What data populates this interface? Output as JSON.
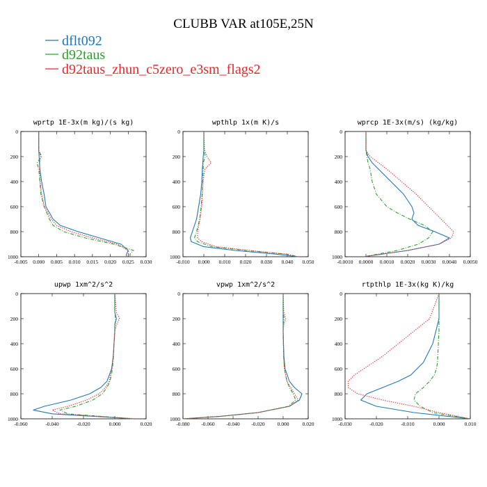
{
  "figure": {
    "title": "CLUBB VAR at105E,25N",
    "legend": [
      {
        "label": "dflt092",
        "color": "#1f77b4"
      },
      {
        "label": "d92taus",
        "color": "#2ca02c"
      },
      {
        "label": "d92taus_zhun_c5zero_e3sm_flags2",
        "color": "#e8262b"
      }
    ]
  },
  "chart_data": [
    {
      "type": "line",
      "title": "wprtp  1E-3x(m kg)/(s kg)",
      "xlim": [
        -0.005,
        0.03
      ],
      "ylim": [
        1000,
        0
      ],
      "y_inverted": true,
      "xticks": [
        "-0.005",
        "0.000",
        "0.005",
        "0.010",
        "0.015",
        "0.020",
        "0.025",
        "0.030"
      ],
      "yticks": [
        "0",
        "200",
        "400",
        "600",
        "800",
        "1000"
      ],
      "y": [
        0,
        150,
        200,
        250,
        300,
        400,
        500,
        600,
        700,
        750,
        800,
        850,
        900,
        950,
        980,
        1000
      ],
      "series": [
        {
          "name": "dflt092",
          "color": "#1f77b4",
          "dash": "solid",
          "x": [
            0,
            0,
            0.0001,
            0.0002,
            0.0003,
            0.0008,
            0.0015,
            0.002,
            0.004,
            0.006,
            0.011,
            0.017,
            0.023,
            0.025,
            0.0245,
            0.0245
          ]
        },
        {
          "name": "d92taus",
          "color": "#2ca02c",
          "dash": "dashdot",
          "x": [
            0,
            0,
            0.0008,
            -0.0005,
            0,
            0.0003,
            0.0006,
            0.0015,
            0.003,
            0.004,
            0.007,
            0.013,
            0.021,
            0.0265,
            0.0255,
            0.0255
          ]
        },
        {
          "name": "d92taus_zhun_c5zero_e3sm_flags2",
          "color": "#e8262b",
          "dash": "dotted",
          "x": [
            0,
            0,
            0.0005,
            0.0003,
            0.0002,
            0.0004,
            0.0008,
            0.0016,
            0.0035,
            0.005,
            0.009,
            0.015,
            0.022,
            0.025,
            0.025,
            0.025
          ]
        }
      ]
    },
    {
      "type": "line",
      "title": "wpthlp  1x(m K)/s",
      "xlim": [
        -0.01,
        0.05
      ],
      "ylim": [
        1000,
        0
      ],
      "y_inverted": true,
      "xticks": [
        "-0.010",
        "0.000",
        "0.010",
        "0.020",
        "0.030",
        "0.040",
        "0.050"
      ],
      "yticks": [
        "0",
        "200",
        "400",
        "600",
        "800",
        "1000"
      ],
      "y": [
        0,
        150,
        200,
        250,
        300,
        400,
        500,
        600,
        700,
        800,
        850,
        880,
        920,
        950,
        980,
        1000
      ],
      "series": [
        {
          "name": "dflt092",
          "color": "#1f77b4",
          "dash": "solid",
          "x": [
            0,
            0,
            -0.0003,
            -0.0005,
            -0.0007,
            -0.001,
            -0.0015,
            -0.0025,
            -0.0035,
            -0.0055,
            -0.0065,
            -0.006,
            0,
            0.015,
            0.035,
            0.045
          ]
        },
        {
          "name": "d92taus",
          "color": "#2ca02c",
          "dash": "dashdot",
          "x": [
            0,
            0,
            0.0007,
            -0.0003,
            -0.0003,
            -0.0005,
            -0.0008,
            -0.0013,
            -0.002,
            -0.0035,
            -0.0045,
            -0.003,
            0.004,
            0.02,
            0.04,
            0.045
          ]
        },
        {
          "name": "d92taus_zhun_c5zero_e3sm_flags2",
          "color": "#e8262b",
          "dash": "dotted",
          "x": [
            0,
            0.0003,
            0.0015,
            0.0035,
            0.0005,
            -0.0004,
            -0.0007,
            -0.001,
            -0.0018,
            -0.003,
            -0.003,
            -0.001,
            0.006,
            0.022,
            0.04,
            0.045
          ]
        }
      ]
    },
    {
      "type": "line",
      "title": "wprcp  1E-3x(m/s) (kg/kg)",
      "xlim": [
        -0.001,
        0.005
      ],
      "ylim": [
        1000,
        0
      ],
      "y_inverted": true,
      "xticks": [
        "-0.0010",
        "0.0000",
        "0.0010",
        "0.0020",
        "0.0030",
        "0.0040",
        "0.0050"
      ],
      "yticks": [
        "0",
        "200",
        "400",
        "600",
        "800",
        "1000"
      ],
      "y": [
        0,
        150,
        200,
        250,
        300,
        400,
        500,
        600,
        650,
        700,
        750,
        800,
        850,
        900,
        950,
        1000
      ],
      "series": [
        {
          "name": "dflt092",
          "color": "#1f77b4",
          "dash": "solid",
          "x": [
            0,
            0,
            0.0001,
            0.0003,
            0.0006,
            0.0012,
            0.0018,
            0.0022,
            0.0023,
            0.0022,
            0.0025,
            0.0033,
            0.004,
            0.0035,
            0.002,
            -0.0001
          ]
        },
        {
          "name": "d92taus",
          "color": "#2ca02c",
          "dash": "dashdot",
          "x": [
            0,
            0,
            5e-05,
            0.0001,
            0.0002,
            0.0003,
            0.0005,
            0.001,
            0.0015,
            0.0021,
            0.0028,
            0.0032,
            0.003,
            0.0025,
            0.0015,
            -0.0001
          ]
        },
        {
          "name": "d92taus_zhun_c5zero_e3sm_flags2",
          "color": "#e8262b",
          "dash": "dotted",
          "x": [
            0,
            0,
            0.0002,
            0.0006,
            0.001,
            0.0017,
            0.0024,
            0.003,
            0.0033,
            0.0036,
            0.0039,
            0.0042,
            0.0041,
            0.0035,
            0.002,
            -0.0001
          ]
        }
      ]
    },
    {
      "type": "line",
      "title": "upwp  1xm^2/s^2",
      "xlim": [
        -0.06,
        0.02
      ],
      "ylim": [
        1000,
        0
      ],
      "y_inverted": true,
      "xticks": [
        "-0.060",
        "-0.040",
        "-0.020",
        "0.000",
        "0.020"
      ],
      "yticks": [
        "0",
        "200",
        "400",
        "600",
        "800",
        "1000"
      ],
      "y": [
        0,
        150,
        200,
        250,
        300,
        400,
        500,
        600,
        700,
        750,
        800,
        850,
        900,
        930,
        960,
        1000
      ],
      "series": [
        {
          "name": "dflt092",
          "color": "#1f77b4",
          "dash": "solid",
          "x": [
            0,
            0,
            0.001,
            0,
            0,
            -0.0005,
            -0.001,
            -0.002,
            -0.005,
            -0.009,
            -0.016,
            -0.028,
            -0.045,
            -0.052,
            -0.04,
            0.012
          ]
        },
        {
          "name": "d92taus",
          "color": "#2ca02c",
          "dash": "dashdot",
          "x": [
            0,
            0,
            0.0005,
            0,
            0,
            -0.0005,
            -0.0008,
            -0.0015,
            -0.003,
            -0.005,
            -0.008,
            -0.014,
            -0.025,
            -0.035,
            -0.03,
            0.012
          ]
        },
        {
          "name": "d92taus_zhun_c5zero_e3sm_flags2",
          "color": "#e8262b",
          "dash": "dotted",
          "x": [
            0,
            0.001,
            0.003,
            0.001,
            0,
            -0.0005,
            -0.001,
            -0.002,
            -0.0035,
            -0.006,
            -0.01,
            -0.018,
            -0.03,
            -0.04,
            -0.035,
            0.014
          ]
        }
      ]
    },
    {
      "type": "line",
      "title": "vpwp  1xm^2/s^2",
      "xlim": [
        -0.08,
        0.02
      ],
      "ylim": [
        1000,
        0
      ],
      "y_inverted": true,
      "xticks": [
        "-0.080",
        "-0.060",
        "-0.040",
        "-0.020",
        "0.000",
        "0.020"
      ],
      "yticks": [
        "0",
        "200",
        "400",
        "600",
        "800",
        "1000"
      ],
      "y": [
        0,
        150,
        200,
        250,
        300,
        400,
        500,
        600,
        700,
        750,
        800,
        850,
        900,
        950,
        980,
        1000
      ],
      "series": [
        {
          "name": "dflt092",
          "color": "#1f77b4",
          "dash": "solid",
          "x": [
            0,
            0,
            0,
            0,
            0,
            0.0003,
            0.0006,
            0.0015,
            0.005,
            0.009,
            0.015,
            0.013,
            0.005,
            -0.02,
            -0.05,
            -0.08
          ]
        },
        {
          "name": "d92taus",
          "color": "#2ca02c",
          "dash": "dashdot",
          "x": [
            0,
            0,
            0.0008,
            0,
            0,
            0.0002,
            0.0004,
            0.001,
            0.003,
            0.005,
            0.008,
            0.01,
            0.004,
            -0.02,
            -0.05,
            -0.08
          ]
        },
        {
          "name": "d92taus_zhun_c5zero_e3sm_flags2",
          "color": "#e8262b",
          "dash": "dotted",
          "x": [
            0,
            0.0005,
            0.002,
            0.0005,
            0,
            0.0002,
            0.0004,
            0.001,
            0.003,
            0.006,
            0.009,
            0.012,
            0.005,
            -0.02,
            -0.05,
            -0.08
          ]
        }
      ]
    },
    {
      "type": "line",
      "title": "rtpthlp  1E-3x(kg K)/kg",
      "xlim": [
        -0.03,
        0.01
      ],
      "ylim": [
        1000,
        0
      ],
      "y_inverted": true,
      "xticks": [
        "-0.030",
        "-0.020",
        "-0.010",
        "0.000",
        "0.010"
      ],
      "yticks": [
        "0",
        "200",
        "400",
        "600",
        "800",
        "1000"
      ],
      "y": [
        0,
        200,
        300,
        400,
        500,
        550,
        600,
        650,
        700,
        750,
        800,
        850,
        900,
        950,
        1000
      ],
      "series": [
        {
          "name": "dflt092",
          "color": "#1f77b4",
          "dash": "solid",
          "x": [
            0,
            0,
            -0.001,
            -0.002,
            -0.004,
            -0.005,
            -0.007,
            -0.009,
            -0.013,
            -0.018,
            -0.023,
            -0.025,
            -0.02,
            -0.008,
            0.01
          ]
        },
        {
          "name": "d92taus",
          "color": "#2ca02c",
          "dash": "dashdot",
          "x": [
            0,
            0,
            0,
            -0.0002,
            -0.0004,
            -0.0005,
            -0.0008,
            -0.0015,
            -0.003,
            -0.005,
            -0.0075,
            -0.008,
            -0.006,
            -0.002,
            0.01
          ]
        },
        {
          "name": "d92taus_zhun_c5zero_e3sm_flags2",
          "color": "#e8262b",
          "dash": "dotted",
          "x": [
            0,
            -0.003,
            -0.008,
            -0.013,
            -0.018,
            -0.021,
            -0.024,
            -0.027,
            -0.029,
            -0.029,
            -0.026,
            -0.018,
            -0.008,
            0,
            0.01
          ]
        }
      ]
    }
  ]
}
